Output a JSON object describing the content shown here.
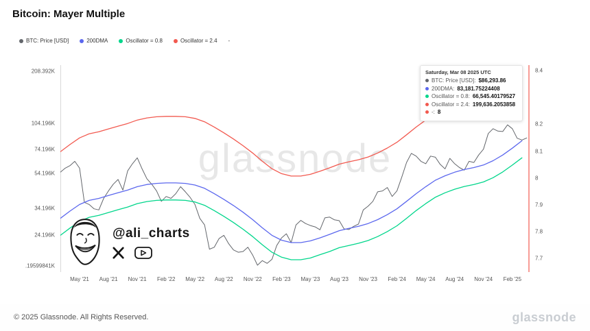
{
  "title": "Bitcoin: Mayer Multiple",
  "watermark": "glassnode",
  "legend": [
    {
      "label": "BTC: Price [USD]",
      "color": "#63666b"
    },
    {
      "label": "200DMA",
      "color": "#5b67ee"
    },
    {
      "label": "Oscillator = 0.8",
      "color": "#00d68b"
    },
    {
      "label": "Oscillator = 2.4",
      "color": "#f2594f"
    },
    {
      "label": "-",
      "color": ""
    }
  ],
  "tooltip": {
    "date": "Saturday, Mar 08 2025 UTC",
    "rows": [
      {
        "color": "#63666b",
        "label": "BTC: Price [USD]:",
        "value": "$86,293.86"
      },
      {
        "color": "#5b67ee",
        "label": "200DMA:",
        "value": "83,181.75224408"
      },
      {
        "color": "#00d68b",
        "label": "Oscillator = 0.8:",
        "value": "66,545.40179527"
      },
      {
        "color": "#f2594f",
        "label": "Oscillator = 2.4:",
        "value": "199,636.2053858"
      },
      {
        "color": "#f2594f",
        "label": "-:",
        "value": "8"
      }
    ]
  },
  "ali": {
    "handle": "@ali_charts"
  },
  "footer": {
    "copyright": "© 2025 Glassnode. All Rights Reserved.",
    "brand": "glassnode"
  },
  "chart_data": {
    "type": "line",
    "title": "Bitcoin: Mayer Multiple",
    "x_unit": "months since Mar 2021",
    "x_max": 48.8,
    "grid": false,
    "legend_position": "top-left",
    "x_ticks": [
      {
        "m": 2,
        "label": "May '21"
      },
      {
        "m": 5,
        "label": "Aug '21"
      },
      {
        "m": 8,
        "label": "Nov '21"
      },
      {
        "m": 11,
        "label": "Feb '22"
      },
      {
        "m": 14,
        "label": "May '22"
      },
      {
        "m": 17,
        "label": "Aug '22"
      },
      {
        "m": 20,
        "label": "Nov '22"
      },
      {
        "m": 23,
        "label": "Feb '23"
      },
      {
        "m": 26,
        "label": "May '23"
      },
      {
        "m": 29,
        "label": "Aug '23"
      },
      {
        "m": 32,
        "label": "Nov '23"
      },
      {
        "m": 35,
        "label": "Feb '24"
      },
      {
        "m": 38,
        "label": "May '24"
      },
      {
        "m": 41,
        "label": "Aug '24"
      },
      {
        "m": 44,
        "label": "Nov '24"
      },
      {
        "m": 47,
        "label": "Feb '25"
      }
    ],
    "y_left": {
      "scale": "log",
      "unit": "thousand USD",
      "render_min_k": 14.8,
      "render_max_k": 225,
      "ticks": [
        {
          "v": 208.392,
          "label": "208.392K"
        },
        {
          "v": 104.196,
          "label": "104.196K"
        },
        {
          "v": 74.196,
          "label": "74.196K"
        },
        {
          "v": 54.196,
          "label": "54.196K"
        },
        {
          "v": 34.196,
          "label": "34.196K"
        },
        {
          "v": 24.196,
          "label": "24.196K"
        },
        {
          "v": 16.0,
          "label": ".19599841K"
        }
      ]
    },
    "y_right": {
      "scale": "linear",
      "min": 7.65,
      "max": 8.42,
      "ticks": [
        8.4,
        8.2,
        8.1,
        8,
        7.9,
        7.8,
        7.7
      ]
    },
    "series": [
      {
        "name": "btc-price-usd",
        "label": "BTC: Price [USD]",
        "color": "#63666b",
        "width": 1,
        "x_start": 0,
        "x_step": 0.5,
        "values_k": [
          55,
          58,
          60,
          63.5,
          58,
          37,
          36,
          34,
          33.5,
          39,
          43,
          47,
          50,
          43.5,
          56,
          61.5,
          66.5,
          57.5,
          50.5,
          47,
          43,
          37.5,
          40,
          39,
          41.5,
          45.5,
          42.5,
          39.5,
          36,
          30,
          27.5,
          20,
          20.5,
          23,
          24,
          21.5,
          19.8,
          19.2,
          19.4,
          20.5,
          18.5,
          16.2,
          17.2,
          16.6,
          17.5,
          21,
          23.2,
          24.5,
          21.8,
          27.5,
          29.2,
          28,
          27.3,
          26.8,
          25.8,
          30.2,
          30.5,
          29.4,
          29.1,
          26.1,
          25.9,
          27,
          27.8,
          33.5,
          35.2,
          37.5,
          42.5,
          43,
          45,
          40,
          43,
          51.5,
          62.5,
          70.5,
          68,
          63.5,
          61.5,
          68,
          67,
          61,
          57.5,
          66,
          61.5,
          58.5,
          56.5,
          63.5,
          62.5,
          69,
          74.5,
          91.5,
          97.5,
          94.5,
          94,
          102.5,
          97.5,
          86,
          84,
          86.3
        ]
      },
      {
        "name": "200dma",
        "label": "200DMA",
        "color": "#5b67ee",
        "width": 1.3,
        "x_start": 0,
        "x_step": 1,
        "values_k": [
          30,
          33,
          36,
          38,
          39,
          40.5,
          42,
          43.5,
          45.5,
          46.8,
          47.5,
          47.8,
          47.8,
          47.5,
          46.5,
          44.5,
          41.5,
          38.5,
          35.5,
          32.5,
          29.5,
          26.5,
          24,
          22.5,
          21.8,
          21.8,
          22.3,
          23.2,
          24.3,
          25.5,
          26.3,
          27,
          28,
          29.5,
          31.5,
          34,
          37.5,
          41.5,
          45.5,
          49.5,
          52.5,
          55,
          57,
          58.5,
          60.5,
          64,
          69,
          75.5,
          83.2
        ]
      },
      {
        "name": "oscillator-0-8",
        "label": "Oscillator = 0.8",
        "color": "#00d68b",
        "width": 1.3,
        "x_start": 0,
        "x_step": 1,
        "values_k": [
          24,
          26.4,
          28.8,
          30.4,
          31.2,
          32.4,
          33.6,
          34.8,
          36.4,
          37.4,
          38,
          38.2,
          38.2,
          38,
          37.2,
          35.6,
          33.2,
          30.8,
          28.4,
          26,
          23.6,
          21.2,
          19.2,
          18,
          17.4,
          17.4,
          17.8,
          18.6,
          19.4,
          20.4,
          21,
          21.6,
          22.4,
          23.6,
          25.2,
          27.2,
          30,
          33.2,
          36.4,
          39.6,
          42,
          44,
          45.6,
          46.8,
          48.4,
          51.2,
          55.2,
          60.4,
          66.5
        ]
      },
      {
        "name": "oscillator-2-4",
        "label": "Oscillator = 2.4",
        "color": "#f2594f",
        "width": 1.3,
        "x_start": 0,
        "x_step": 1,
        "values_k": [
          72,
          79.2,
          86.4,
          91.2,
          93.6,
          97.2,
          100.8,
          104.4,
          109.2,
          112.3,
          114,
          114.7,
          114.7,
          114,
          111.6,
          106.8,
          99.6,
          92.4,
          85.2,
          78,
          70.8,
          63.6,
          57.6,
          54,
          52.3,
          52.3,
          53.5,
          55.7,
          58.3,
          61.2,
          63.1,
          64.8,
          67.2,
          70.8,
          75.6,
          81.6,
          90,
          99.6,
          109.2,
          118.8,
          126,
          132,
          136.8,
          140.4,
          145.2,
          153.6,
          165.6,
          181.2,
          199.6
        ]
      }
    ],
    "vertical_marker": {
      "x_m": 48.8,
      "color": "#f2594f"
    }
  }
}
